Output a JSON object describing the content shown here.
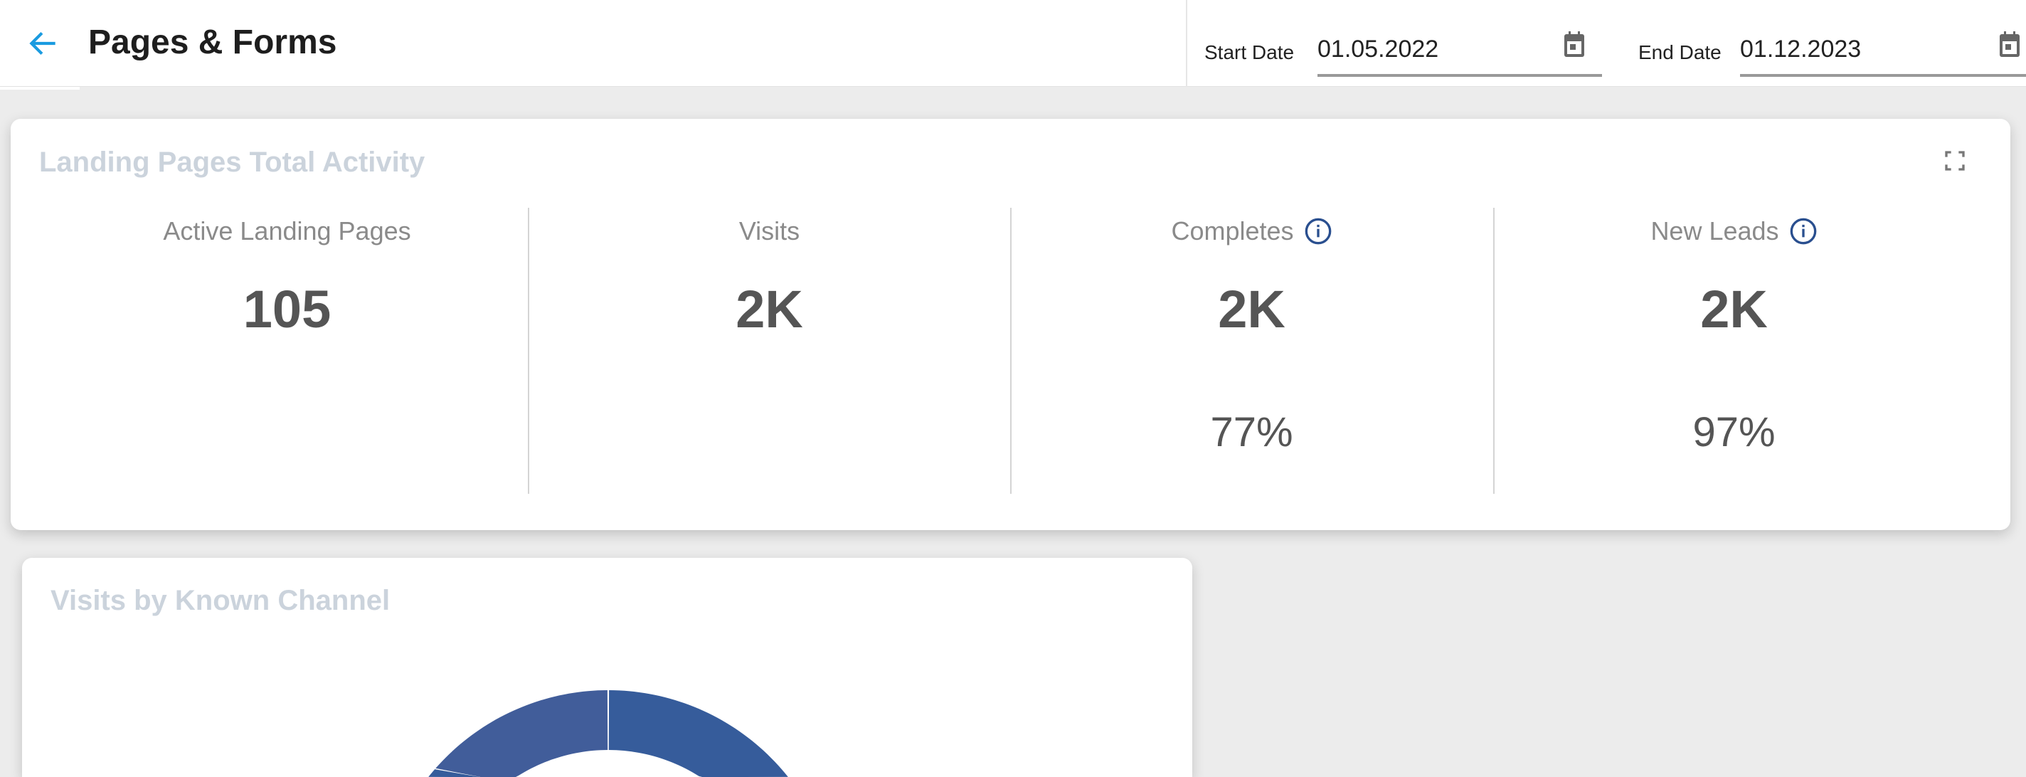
{
  "header": {
    "title": "Pages & Forms",
    "start_date_label": "Start Date",
    "start_date_value": "01.05.2022",
    "end_date_label": "End Date",
    "end_date_value": "01.12.2023",
    "accent_color": "#1a9be0"
  },
  "activity_card": {
    "title": "Landing Pages Total Activity",
    "metrics": [
      {
        "label": "Active Landing Pages",
        "value": "105",
        "percent": ""
      },
      {
        "label": "Visits",
        "value": "2K",
        "percent": ""
      },
      {
        "label": "Completes",
        "value": "2K",
        "percent": "77%"
      },
      {
        "label": "New Leads",
        "value": "2K",
        "percent": "97%"
      }
    ],
    "info_icon_color": "#2a4f8f"
  },
  "channel_card": {
    "title": "Visits by Known Channel",
    "donut_colors": [
      "#365c9b",
      "#415d9a"
    ]
  }
}
